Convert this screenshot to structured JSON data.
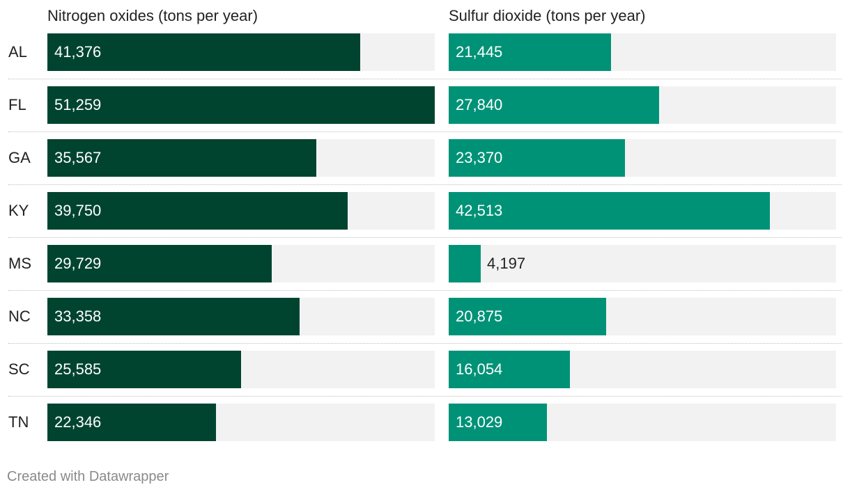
{
  "chart_data": [
    {
      "type": "bar",
      "orientation": "horizontal",
      "title": "Nitrogen oxides (tons per year)",
      "categories": [
        "AL",
        "FL",
        "GA",
        "KY",
        "MS",
        "NC",
        "SC",
        "TN"
      ],
      "values": [
        41376,
        51259,
        35567,
        39750,
        29729,
        33358,
        25585,
        22346
      ],
      "labels": [
        "41,376",
        "51,259",
        "35,567",
        "39,750",
        "29,729",
        "33,358",
        "25,585",
        "22,346"
      ],
      "xlim": [
        0,
        51259
      ],
      "color": "#004430"
    },
    {
      "type": "bar",
      "orientation": "horizontal",
      "title": "Sulfur dioxide (tons per year)",
      "categories": [
        "AL",
        "FL",
        "GA",
        "KY",
        "MS",
        "NC",
        "SC",
        "TN"
      ],
      "values": [
        21445,
        27840,
        23370,
        42513,
        4197,
        20875,
        16054,
        13029
      ],
      "labels": [
        "21,445",
        "27,840",
        "23,370",
        "42,513",
        "4,197",
        "20,875",
        "16,054",
        "13,029"
      ],
      "xlim": [
        0,
        51259
      ],
      "color": "#009277"
    }
  ],
  "footer": {
    "credit": "Created with Datawrapper"
  },
  "colors": {
    "track": "#f2f2f2",
    "label_on_bar": "#ffffff",
    "label_off_bar": "#222222"
  }
}
